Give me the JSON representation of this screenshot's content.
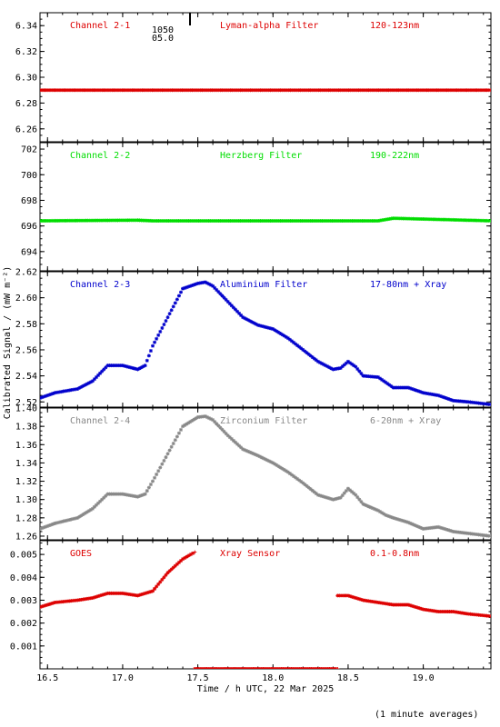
{
  "figure": {
    "xlabel": "Time / h UTC, 22 Mar 2025",
    "ylabel": "Calibrated Signal / (mW m⁻²)",
    "note": "(1 minute averages)",
    "xlim": [
      16.45,
      19.45
    ],
    "xticks": [
      "16.5",
      "17.0",
      "17.5",
      "18.0",
      "18.5",
      "19.0"
    ],
    "xtick_values": [
      16.5,
      17.0,
      17.5,
      18.0,
      18.5,
      19.0
    ]
  },
  "chart_data": [
    {
      "type": "scatter",
      "channel_label": "Channel 2-1",
      "filter_label": "Lyman-alpha Filter",
      "range_label": "120-123nm",
      "color": "#dd0000",
      "ylim": [
        6.25,
        6.35
      ],
      "yticks": [
        "6.26",
        "6.28",
        "6.30",
        "6.32",
        "6.34"
      ],
      "ytick_values": [
        6.26,
        6.28,
        6.3,
        6.32,
        6.34
      ],
      "annotation_lines": [
        "1050",
        "05.0"
      ],
      "series": [
        {
          "x": [
            16.45,
            19.45
          ],
          "y": [
            6.29,
            6.29
          ]
        }
      ]
    },
    {
      "type": "scatter",
      "channel_label": "Channel 2-2",
      "filter_label": "Herzberg Filter",
      "range_label": "190-222nm",
      "color": "#00dd00",
      "ylim": [
        692.5,
        702.5
      ],
      "yticks": [
        "694",
        "696",
        "698",
        "700",
        "702"
      ],
      "ytick_values": [
        694,
        696,
        698,
        700,
        702
      ],
      "series": [
        {
          "x": [
            16.45,
            17.1,
            17.2,
            18.7,
            18.8,
            19.45
          ],
          "y": [
            696.4,
            696.45,
            696.4,
            696.4,
            696.6,
            696.4
          ]
        }
      ]
    },
    {
      "type": "scatter",
      "channel_label": "Channel 2-3",
      "filter_label": "Aluminium Filter",
      "range_label": "17-80nm + Xray",
      "color": "#0000cc",
      "ylim": [
        2.516,
        2.62
      ],
      "yticks": [
        "2.52",
        "2.54",
        "2.56",
        "2.58",
        "2.60",
        "2.62"
      ],
      "ytick_values": [
        2.52,
        2.54,
        2.56,
        2.58,
        2.6,
        2.62
      ],
      "series": [
        {
          "x": [
            16.45,
            16.55,
            16.7,
            16.8,
            16.9,
            17.0,
            17.1,
            17.15,
            17.2,
            17.3,
            17.4,
            17.5,
            17.55,
            17.6,
            17.7,
            17.8,
            17.9,
            18.0,
            18.1,
            18.2,
            18.3,
            18.4,
            18.45,
            18.5,
            18.55,
            18.6,
            18.7,
            18.75,
            18.8,
            18.9,
            19.0,
            19.1,
            19.2,
            19.3,
            19.45
          ],
          "y": [
            2.523,
            2.527,
            2.53,
            2.536,
            2.548,
            2.548,
            2.545,
            2.548,
            2.563,
            2.585,
            2.607,
            2.611,
            2.612,
            2.609,
            2.597,
            2.585,
            2.579,
            2.576,
            2.569,
            2.56,
            2.551,
            2.545,
            2.546,
            2.551,
            2.547,
            2.54,
            2.539,
            2.535,
            2.531,
            2.531,
            2.527,
            2.525,
            2.521,
            2.52,
            2.518
          ]
        }
      ]
    },
    {
      "type": "scatter",
      "channel_label": "Channel 2-4",
      "filter_label": "Zirconium Filter",
      "range_label": "6-20nm + Xray",
      "color": "#888888",
      "ylim": [
        1.256,
        1.4
      ],
      "yticks": [
        "1.26",
        "1.28",
        "1.30",
        "1.32",
        "1.34",
        "1.36",
        "1.38",
        "1.40"
      ],
      "ytick_values": [
        1.26,
        1.28,
        1.3,
        1.32,
        1.34,
        1.36,
        1.38,
        1.4
      ],
      "series": [
        {
          "x": [
            16.45,
            16.55,
            16.7,
            16.8,
            16.9,
            17.0,
            17.1,
            17.15,
            17.2,
            17.3,
            17.4,
            17.5,
            17.55,
            17.6,
            17.7,
            17.8,
            17.9,
            18.0,
            18.1,
            18.2,
            18.3,
            18.4,
            18.45,
            18.5,
            18.55,
            18.6,
            18.7,
            18.75,
            18.8,
            18.9,
            19.0,
            19.1,
            19.2,
            19.3,
            19.45
          ],
          "y": [
            1.268,
            1.274,
            1.28,
            1.29,
            1.306,
            1.306,
            1.303,
            1.306,
            1.32,
            1.35,
            1.38,
            1.39,
            1.391,
            1.387,
            1.37,
            1.355,
            1.348,
            1.34,
            1.33,
            1.318,
            1.305,
            1.3,
            1.302,
            1.312,
            1.305,
            1.295,
            1.288,
            1.283,
            1.28,
            1.275,
            1.268,
            1.27,
            1.265,
            1.263,
            1.26
          ]
        }
      ]
    },
    {
      "type": "scatter",
      "channel_label": "GOES",
      "filter_label": "Xray Sensor",
      "range_label": "0.1-0.8nm",
      "color": "#dd0000",
      "ylim": [
        0.0,
        0.0056
      ],
      "yticks": [
        "0.001",
        "0.002",
        "0.003",
        "0.004",
        "0.005"
      ],
      "ytick_values": [
        0.001,
        0.002,
        0.003,
        0.004,
        0.005
      ],
      "series": [
        {
          "x": [
            16.45,
            16.55,
            16.7,
            16.8,
            16.9,
            17.0,
            17.1,
            17.2,
            17.3,
            17.4,
            17.48
          ],
          "y": [
            0.0027,
            0.0029,
            0.003,
            0.0031,
            0.0033,
            0.0033,
            0.0032,
            0.0034,
            0.0042,
            0.0048,
            0.0051
          ]
        },
        {
          "x": [
            17.48,
            18.43
          ],
          "y": [
            0.0,
            0.0
          ]
        },
        {
          "x": [
            18.43,
            18.5,
            18.6,
            18.7,
            18.8,
            18.9,
            19.0,
            19.1,
            19.2,
            19.3,
            19.45
          ],
          "y": [
            0.0032,
            0.0032,
            0.003,
            0.0029,
            0.0028,
            0.0028,
            0.0026,
            0.0025,
            0.0025,
            0.0024,
            0.0023
          ]
        }
      ]
    }
  ]
}
